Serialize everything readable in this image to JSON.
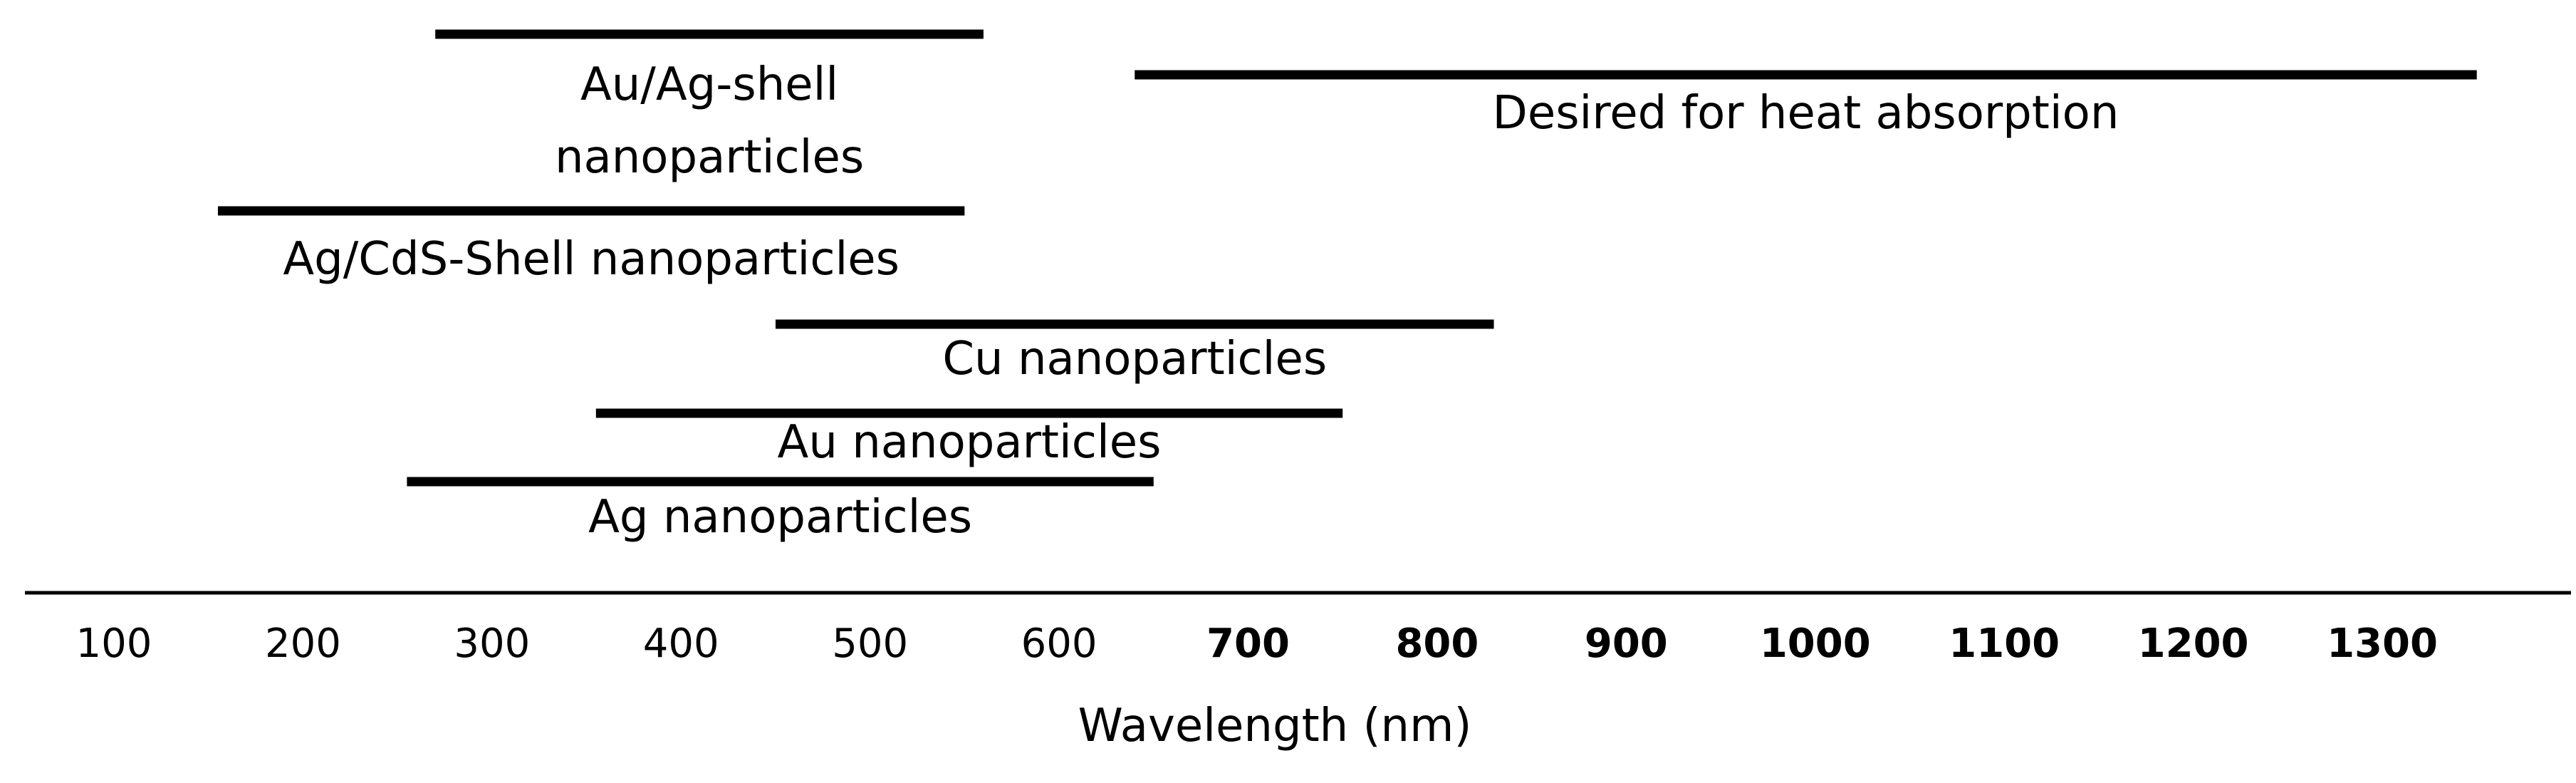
{
  "chart_data": {
    "type": "range-bar",
    "xlabel": "Wavelength (nm)",
    "xlim": [
      100,
      1300
    ],
    "ticks": [
      {
        "value": 100,
        "label": "100",
        "bold": false
      },
      {
        "value": 200,
        "label": "200",
        "bold": false
      },
      {
        "value": 300,
        "label": "300",
        "bold": false
      },
      {
        "value": 400,
        "label": "400",
        "bold": false
      },
      {
        "value": 500,
        "label": "500",
        "bold": false
      },
      {
        "value": 600,
        "label": "600",
        "bold": false
      },
      {
        "value": 700,
        "label": "700",
        "bold": true
      },
      {
        "value": 800,
        "label": "800",
        "bold": true
      },
      {
        "value": 900,
        "label": "900",
        "bold": true
      },
      {
        "value": 1000,
        "label": "1000",
        "bold": true
      },
      {
        "value": 1100,
        "label": "1100",
        "bold": true
      },
      {
        "value": 1200,
        "label": "1200",
        "bold": true
      },
      {
        "value": 1300,
        "label": "1300",
        "bold": true
      }
    ],
    "ranges": [
      {
        "name": "Au/Ag-shell nanoparticles",
        "label_lines": [
          "Au/Ag-shell",
          "nanoparticles"
        ],
        "start": 270,
        "end": 560
      },
      {
        "name": "Desired for heat absorption",
        "label_lines": [
          "Desired for heat absorption"
        ],
        "start": 640,
        "end": 1350
      },
      {
        "name": "Ag/CdS-Shell nanoparticles",
        "label_lines": [
          "Ag/CdS-Shell nanoparticles"
        ],
        "start": 155,
        "end": 550
      },
      {
        "name": "Cu nanoparticles",
        "label_lines": [
          "Cu nanoparticles"
        ],
        "start": 450,
        "end": 830
      },
      {
        "name": "Au nanoparticles",
        "label_lines": [
          "Au nanoparticles"
        ],
        "start": 355,
        "end": 750
      },
      {
        "name": "Ag nanoparticles",
        "label_lines": [
          "Ag nanoparticles"
        ],
        "start": 255,
        "end": 650
      }
    ]
  }
}
